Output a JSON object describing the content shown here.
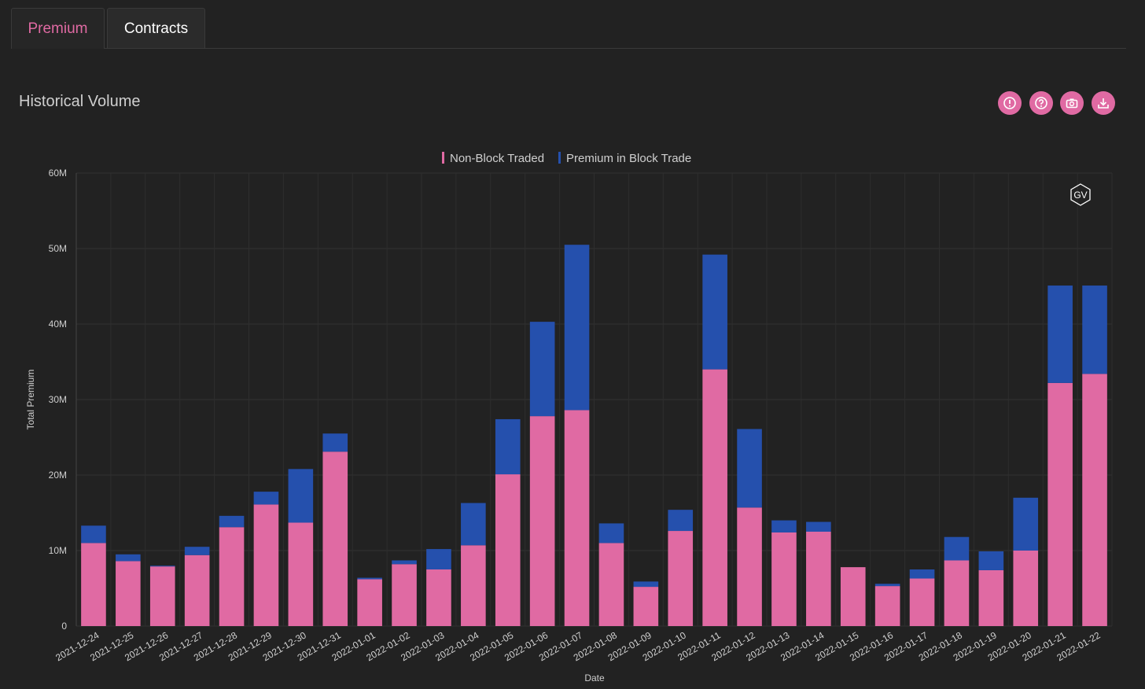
{
  "tabs": [
    {
      "label": "Premium",
      "active": true
    },
    {
      "label": "Contracts",
      "active": false
    }
  ],
  "card": {
    "title": "Historical Volume",
    "actions": [
      "alert-icon",
      "help-icon",
      "camera-icon",
      "download-icon"
    ],
    "accent_color": "#e06aa3"
  },
  "watermark": "GV",
  "chart_data": {
    "type": "bar",
    "stacked": true,
    "categories": [
      "2021-12-24",
      "2021-12-25",
      "2021-12-26",
      "2021-12-27",
      "2021-12-28",
      "2021-12-29",
      "2021-12-30",
      "2021-12-31",
      "2022-01-01",
      "2022-01-02",
      "2022-01-03",
      "2022-01-04",
      "2022-01-05",
      "2022-01-06",
      "2022-01-07",
      "2022-01-08",
      "2022-01-09",
      "2022-01-10",
      "2022-01-11",
      "2022-01-12",
      "2022-01-13",
      "2022-01-14",
      "2022-01-15",
      "2022-01-16",
      "2022-01-17",
      "2022-01-18",
      "2022-01-19",
      "2022-01-20",
      "2022-01-21",
      "2022-01-22"
    ],
    "series": [
      {
        "name": "Non-Block Traded",
        "color": "#e06aa3",
        "values": [
          11.0,
          8.6,
          7.9,
          9.4,
          13.1,
          16.1,
          13.7,
          23.1,
          6.2,
          8.2,
          7.5,
          10.7,
          20.1,
          27.8,
          28.6,
          11.0,
          5.2,
          12.6,
          34.0,
          15.7,
          12.4,
          12.5,
          7.8,
          5.3,
          6.3,
          8.7,
          7.4,
          10.0,
          32.2,
          33.4
        ]
      },
      {
        "name": "Premium in Block Trade",
        "color": "#2550ad",
        "values": [
          2.3,
          0.9,
          0.1,
          1.1,
          1.5,
          1.7,
          7.1,
          2.4,
          0.2,
          0.5,
          2.7,
          5.6,
          7.3,
          12.5,
          21.9,
          2.6,
          0.7,
          2.8,
          15.2,
          10.4,
          1.6,
          1.3,
          0.0,
          0.3,
          1.2,
          3.1,
          2.5,
          7.0,
          12.9,
          11.7
        ]
      }
    ],
    "xlabel": "Date",
    "ylabel": "Total Premium",
    "ylim": [
      0,
      60
    ],
    "yticks": [
      0,
      10,
      20,
      30,
      40,
      50,
      60
    ],
    "ytick_labels": [
      "0",
      "10M",
      "20M",
      "30M",
      "40M",
      "50M",
      "60M"
    ],
    "grid": true,
    "legend": "top-center"
  }
}
